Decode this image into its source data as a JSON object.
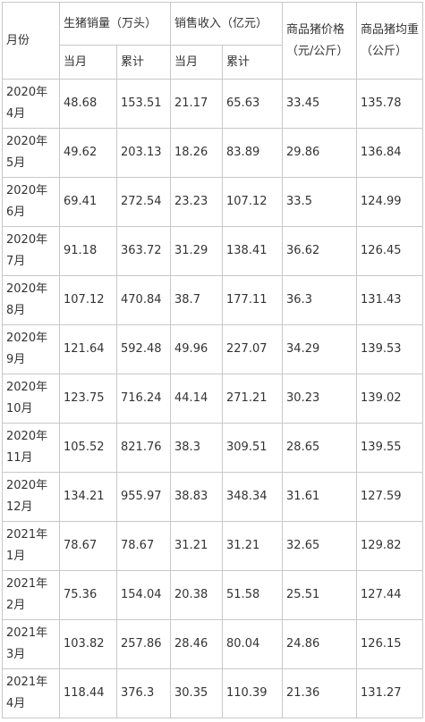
{
  "table": {
    "header": {
      "month": "月份",
      "sales": "生猪销量（万头）",
      "revenue": "销售收入（亿元）",
      "price": "商品猪价格（元/公斤）",
      "weight": "商品猪均重（公斤）",
      "sub": [
        "当月",
        "累计",
        "当月",
        "累计"
      ]
    },
    "rows": [
      [
        "2020年4月",
        48.68,
        153.51,
        21.17,
        65.63,
        33.45,
        135.78
      ],
      [
        "2020年5月",
        49.62,
        203.13,
        18.26,
        83.89,
        29.86,
        136.84
      ],
      [
        "2020年6月",
        69.41,
        272.54,
        23.23,
        107.12,
        33.5,
        124.99
      ],
      [
        "2020年7月",
        91.18,
        363.72,
        31.29,
        138.41,
        36.62,
        126.45
      ],
      [
        "2020年8月",
        107.12,
        470.84,
        38.7,
        177.11,
        36.3,
        131.43
      ],
      [
        "2020年9月",
        121.64,
        592.48,
        49.96,
        227.07,
        34.29,
        139.53
      ],
      [
        "2020年10月",
        123.75,
        716.24,
        44.14,
        271.21,
        30.23,
        139.02
      ],
      [
        "2020年11月",
        105.52,
        821.76,
        38.3,
        309.51,
        28.65,
        139.55
      ],
      [
        "2020年12月",
        134.21,
        955.97,
        38.83,
        348.34,
        31.61,
        127.59
      ],
      [
        "2021年1月",
        78.67,
        78.67,
        31.21,
        31.21,
        32.65,
        129.82
      ],
      [
        "2021年2月",
        75.36,
        154.04,
        20.38,
        51.58,
        25.51,
        127.44
      ],
      [
        "2021年3月",
        103.82,
        257.86,
        28.46,
        80.04,
        24.86,
        126.15
      ],
      [
        "2021年4月",
        118.44,
        376.3,
        30.35,
        110.39,
        21.36,
        131.27
      ]
    ]
  }
}
